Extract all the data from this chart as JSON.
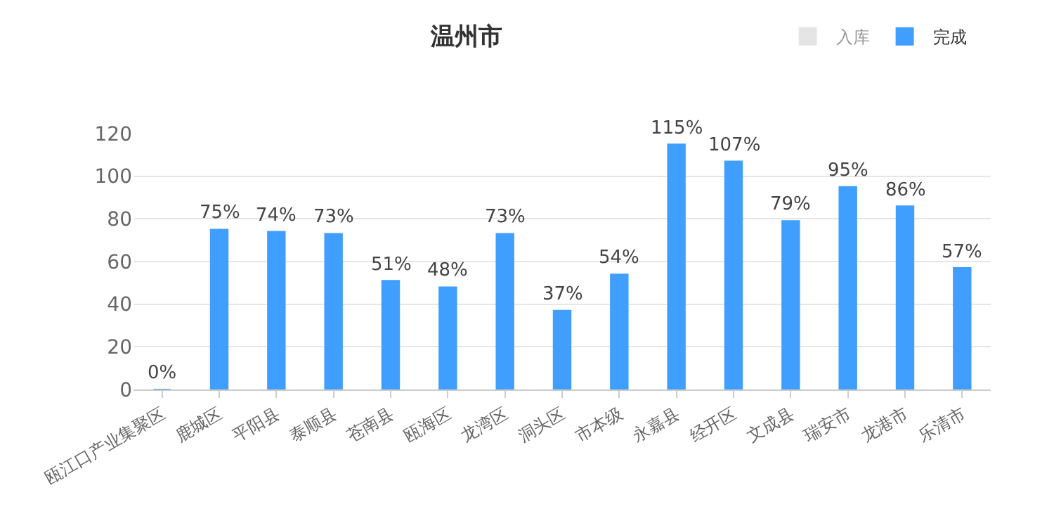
{
  "chart_data": {
    "type": "bar",
    "title": "温州市",
    "categories": [
      "瓯江口产业集聚区",
      "鹿城区",
      "平阳县",
      "泰顺县",
      "苍南县",
      "瓯海区",
      "龙湾区",
      "洞头区",
      "市本级",
      "永嘉县",
      "经开区",
      "文成县",
      "瑞安市",
      "龙港市",
      "乐清市"
    ],
    "series": [
      {
        "name": "入库",
        "color": "#cccccc",
        "values": [
          null,
          null,
          null,
          null,
          null,
          null,
          null,
          null,
          null,
          null,
          null,
          null,
          null,
          null,
          null
        ]
      },
      {
        "name": "完成",
        "color": "#409eff",
        "values": [
          0,
          75,
          74,
          73,
          51,
          48,
          73,
          37,
          54,
          115,
          107,
          79,
          95,
          86,
          57
        ],
        "value_labels": [
          "0%",
          "75%",
          "74%",
          "73%",
          "51%",
          "48%",
          "73%",
          "37%",
          "54%",
          "115%",
          "107%",
          "79%",
          "95%",
          "86%",
          "57%"
        ]
      }
    ],
    "ylim": [
      0,
      120
    ],
    "yticks": [
      0,
      20,
      40,
      60,
      80,
      100,
      120
    ],
    "grid": "y",
    "legend": "top right"
  }
}
